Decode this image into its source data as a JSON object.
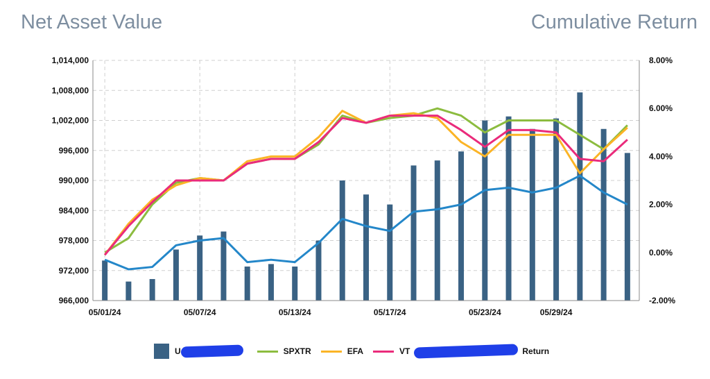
{
  "titles": {
    "left": "Net Asset Value",
    "right": "Cumulative Return"
  },
  "colors": {
    "nav": "#3a6284",
    "cum": "#2487c9",
    "spxtr": "#8cbc3f",
    "efa": "#fbb426",
    "vt": "#ea2b7b",
    "grid": "#cfcfcf",
    "scribble": "#1f3fe8"
  },
  "legend": {
    "spxtr": "SPXTR",
    "efa": "EFA",
    "vt": "VT",
    "nav_partial": "U",
    "return_partial": "Return"
  },
  "chart_data": {
    "type": "bar+line",
    "x": [
      "05/01/24",
      "05/02/24",
      "05/03/24",
      "05/06/24",
      "05/07/24",
      "05/08/24",
      "05/09/24",
      "05/10/24",
      "05/13/24",
      "05/14/24",
      "05/15/24",
      "05/16/24",
      "05/17/24",
      "05/20/24",
      "05/21/24",
      "05/22/24",
      "05/23/24",
      "05/24/24",
      "05/28/24",
      "05/29/24",
      "05/30/24",
      "05/31/24",
      "06/03/24"
    ],
    "xtick_labels": [
      "05/01/24",
      "05/07/24",
      "05/13/24",
      "05/17/24",
      "05/23/24",
      "05/29/24"
    ],
    "y_left": {
      "ticks": [
        "966,000",
        "972,000",
        "978,000",
        "984,000",
        "990,000",
        "996,000",
        "1,002,000",
        "1,008,000",
        "1,014,000"
      ],
      "min": 966000,
      "max": 1014000
    },
    "y_right": {
      "ticks": [
        "-2.00%",
        "0.00%",
        "2.00%",
        "4.00%",
        "6.00%",
        "8.00%"
      ],
      "min": -2.0,
      "max": 8.0
    },
    "bars": [
      974000,
      969800,
      970300,
      976200,
      979000,
      979800,
      972800,
      973300,
      972800,
      978000,
      990000,
      987200,
      985200,
      993000,
      994000,
      995800,
      1002000,
      1002800,
      1000300,
      1002400,
      1007600,
      1000300,
      995500
    ],
    "series": [
      {
        "key": "spxtr",
        "values": [
          0.0,
          0.6,
          2.0,
          2.9,
          3.1,
          3.0,
          3.7,
          3.9,
          3.9,
          4.5,
          5.7,
          5.4,
          5.6,
          5.7,
          6.0,
          5.7,
          5.0,
          5.5,
          5.5,
          5.5,
          4.9,
          4.3,
          5.3
        ]
      },
      {
        "key": "efa",
        "values": [
          -0.1,
          1.2,
          2.2,
          2.8,
          3.1,
          3.0,
          3.8,
          4.0,
          4.0,
          4.8,
          5.9,
          5.4,
          5.7,
          5.8,
          5.6,
          4.6,
          4.0,
          4.9,
          4.9,
          4.9,
          3.3,
          4.3,
          5.2
        ]
      },
      {
        "key": "vt",
        "values": [
          -0.1,
          1.1,
          2.1,
          3.0,
          3.0,
          3.0,
          3.7,
          3.9,
          3.9,
          4.6,
          5.6,
          5.4,
          5.7,
          5.7,
          5.7,
          5.1,
          4.4,
          5.1,
          5.1,
          5.0,
          3.9,
          3.8,
          4.7
        ]
      },
      {
        "key": "cum",
        "values": [
          -0.3,
          -0.7,
          -0.6,
          0.3,
          0.5,
          0.6,
          -0.4,
          -0.3,
          -0.4,
          0.4,
          1.4,
          1.1,
          0.9,
          1.7,
          1.8,
          2.0,
          2.6,
          2.7,
          2.5,
          2.7,
          3.2,
          2.5,
          2.0
        ]
      }
    ]
  }
}
